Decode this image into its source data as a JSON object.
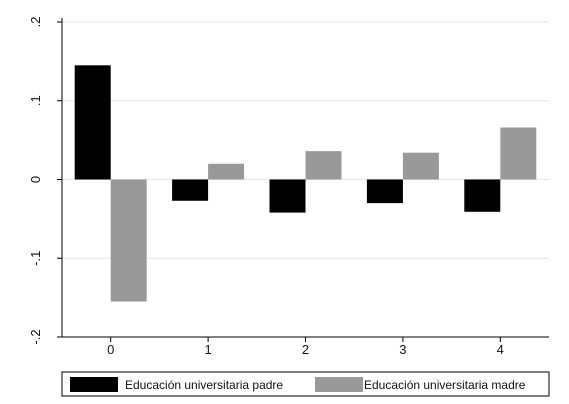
{
  "chart_data": {
    "type": "bar",
    "title": "",
    "xlabel": "",
    "ylabel": "",
    "categories": [
      "0",
      "1",
      "2",
      "3",
      "4"
    ],
    "series": [
      {
        "name": "Educación universitaria padre",
        "color": "#000000",
        "values": [
          0.145,
          -0.027,
          -0.042,
          -0.03,
          -0.041
        ]
      },
      {
        "name": "Educación universitaria madre",
        "color": "#999999",
        "values": [
          -0.155,
          0.02,
          0.036,
          0.034,
          0.066
        ]
      }
    ],
    "ylim": [
      -0.2,
      0.2
    ],
    "y_ticks": [
      -0.2,
      -0.1,
      0,
      0.1,
      0.2
    ],
    "y_tick_labels": [
      "-.2",
      "-.1",
      "0",
      ".1",
      ".2"
    ],
    "grid": true,
    "legend_position": "bottom"
  }
}
